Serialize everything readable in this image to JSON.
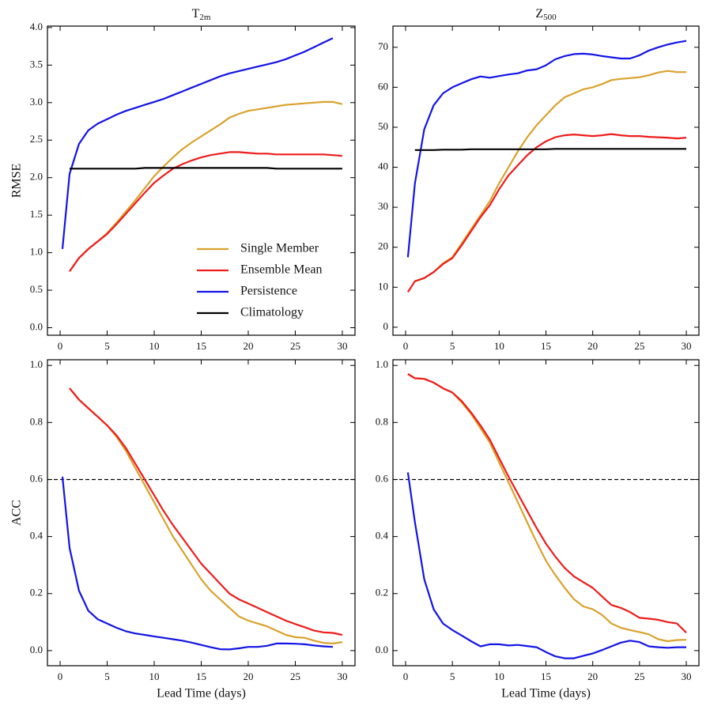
{
  "chart_data": [
    {
      "type": "line",
      "title": {
        "main": "T",
        "sub": "2m"
      },
      "ylabel": "RMSE",
      "xlim": [
        -1.35,
        31.35
      ],
      "xticks": [
        0,
        5,
        10,
        15,
        20,
        25,
        30
      ],
      "ylim": [
        -0.1,
        4.02
      ],
      "yticks": [
        {
          "value": 0,
          "label": "0.0"
        },
        0.5,
        {
          "value": 1,
          "label": "1.0"
        },
        1.5,
        {
          "value": 2,
          "label": "2.0"
        },
        2.5,
        {
          "value": 3,
          "label": "3.0"
        },
        3.5,
        {
          "value": 4,
          "label": "4.0"
        }
      ],
      "legend": "lower right",
      "series": [
        {
          "name": "Single Member",
          "color": "#d9a22c",
          "x": [
            1,
            2,
            3,
            4,
            5,
            6,
            7,
            8,
            9,
            10,
            11,
            12,
            13,
            14,
            15,
            16,
            17,
            18,
            19,
            20,
            21,
            22,
            23,
            24,
            25,
            26,
            27,
            28,
            29,
            30
          ],
          "values": [
            0.75,
            0.93,
            1.05,
            1.15,
            1.26,
            1.4,
            1.55,
            1.7,
            1.86,
            2.02,
            2.15,
            2.27,
            2.38,
            2.47,
            2.55,
            2.63,
            2.71,
            2.8,
            2.85,
            2.89,
            2.91,
            2.93,
            2.95,
            2.97,
            2.98,
            2.99,
            3.0,
            3.01,
            3.01,
            2.98
          ]
        },
        {
          "name": "Ensemble Mean",
          "color": "#ee1c1c",
          "x": [
            1,
            2,
            3,
            4,
            5,
            6,
            7,
            8,
            9,
            10,
            11,
            12,
            13,
            14,
            15,
            16,
            17,
            18,
            19,
            20,
            21,
            22,
            23,
            24,
            25,
            26,
            27,
            28,
            29,
            30
          ],
          "values": [
            0.75,
            0.93,
            1.05,
            1.15,
            1.25,
            1.38,
            1.52,
            1.66,
            1.8,
            1.93,
            2.03,
            2.12,
            2.18,
            2.23,
            2.27,
            2.3,
            2.32,
            2.34,
            2.34,
            2.33,
            2.32,
            2.32,
            2.31,
            2.31,
            2.31,
            2.31,
            2.31,
            2.31,
            2.3,
            2.29
          ]
        },
        {
          "name": "Persistence",
          "color": "#1414e6",
          "x": [
            0.25,
            1,
            2,
            3,
            4,
            5,
            6,
            7,
            8,
            9,
            10,
            11,
            12,
            13,
            14,
            15,
            16,
            17,
            18,
            19,
            20,
            21,
            22,
            23,
            24,
            25,
            26,
            27,
            28,
            29
          ],
          "values": [
            1.05,
            2.05,
            2.45,
            2.63,
            2.72,
            2.78,
            2.84,
            2.89,
            2.93,
            2.97,
            3.01,
            3.05,
            3.1,
            3.15,
            3.2,
            3.25,
            3.3,
            3.35,
            3.39,
            3.42,
            3.45,
            3.48,
            3.51,
            3.54,
            3.58,
            3.63,
            3.68,
            3.74,
            3.8,
            3.86
          ]
        },
        {
          "name": "Climatology",
          "color": "#000000",
          "x": [
            1,
            2,
            3,
            4,
            5,
            6,
            7,
            8,
            9,
            10,
            11,
            12,
            13,
            14,
            15,
            16,
            17,
            18,
            19,
            20,
            21,
            22,
            23,
            24,
            25,
            26,
            27,
            28,
            29,
            30
          ],
          "values": [
            2.12,
            2.12,
            2.12,
            2.12,
            2.12,
            2.12,
            2.12,
            2.12,
            2.13,
            2.13,
            2.13,
            2.13,
            2.13,
            2.13,
            2.13,
            2.13,
            2.13,
            2.13,
            2.13,
            2.13,
            2.13,
            2.13,
            2.12,
            2.12,
            2.12,
            2.12,
            2.12,
            2.12,
            2.12,
            2.12
          ]
        }
      ]
    },
    {
      "type": "line",
      "title": {
        "main": "Z",
        "sub": "500"
      },
      "xlim": [
        -1.35,
        31.35
      ],
      "xticks": [
        0,
        5,
        10,
        15,
        20,
        25,
        30
      ],
      "ylim": [
        -2,
        75.3
      ],
      "yticks": [
        0,
        10,
        20,
        30,
        40,
        50,
        60,
        70
      ],
      "series": [
        {
          "name": "Single Member",
          "color": "#d9a22c",
          "x": [
            1,
            2,
            3,
            4,
            5,
            6,
            7,
            8,
            9,
            10,
            11,
            12,
            13,
            14,
            15,
            16,
            17,
            18,
            19,
            20,
            21,
            22,
            23,
            24,
            25,
            26,
            27,
            28,
            29,
            30
          ],
          "values": [
            11.5,
            12.3,
            13.8,
            16,
            17.5,
            21,
            24.5,
            28,
            31.5,
            36,
            40,
            44,
            47.5,
            50.5,
            53,
            55.5,
            57.5,
            58.5,
            59.5,
            60,
            60.8,
            61.8,
            62.1,
            62.3,
            62.5,
            63,
            63.7,
            64.1,
            63.8,
            63.8
          ]
        },
        {
          "name": "Ensemble Mean",
          "color": "#ee1c1c",
          "x": [
            0.25,
            1,
            2,
            3,
            4,
            5,
            6,
            7,
            8,
            9,
            10,
            11,
            12,
            13,
            14,
            15,
            16,
            17,
            18,
            19,
            20,
            21,
            22,
            23,
            24,
            25,
            26,
            27,
            28,
            29,
            30
          ],
          "values": [
            8.8,
            11.5,
            12.3,
            13.8,
            15.8,
            17.3,
            20.5,
            24,
            27.5,
            30.5,
            34.5,
            38,
            40.5,
            43,
            45,
            46.5,
            47.5,
            48,
            48.2,
            48,
            47.8,
            48,
            48.3,
            48,
            47.8,
            47.8,
            47.6,
            47.5,
            47.4,
            47.2,
            47.4
          ]
        },
        {
          "name": "Persistence",
          "color": "#1414e6",
          "x": [
            0.25,
            1,
            2,
            3,
            4,
            5,
            6,
            7,
            8,
            9,
            10,
            11,
            12,
            13,
            14,
            15,
            16,
            17,
            18,
            19,
            20,
            21,
            22,
            23,
            24,
            25,
            26,
            27,
            28,
            29,
            30
          ],
          "values": [
            17.5,
            36,
            49.5,
            55.5,
            58.5,
            60,
            61,
            62,
            62.7,
            62.4,
            62.8,
            63.2,
            63.5,
            64.2,
            64.5,
            65.5,
            67,
            67.8,
            68.3,
            68.4,
            68.2,
            67.8,
            67.5,
            67.2,
            67.2,
            68,
            69.2,
            70,
            70.7,
            71.2,
            71.6
          ]
        },
        {
          "name": "Climatology",
          "color": "#000000",
          "x": [
            1,
            2,
            3,
            4,
            5,
            6,
            7,
            8,
            9,
            10,
            11,
            12,
            13,
            14,
            15,
            16,
            17,
            18,
            19,
            20,
            21,
            22,
            23,
            24,
            25,
            26,
            27,
            28,
            29,
            30
          ],
          "values": [
            44.3,
            44.3,
            44.3,
            44.4,
            44.4,
            44.4,
            44.5,
            44.5,
            44.5,
            44.5,
            44.5,
            44.5,
            44.5,
            44.5,
            44.5,
            44.6,
            44.6,
            44.6,
            44.6,
            44.6,
            44.6,
            44.6,
            44.6,
            44.6,
            44.6,
            44.6,
            44.6,
            44.6,
            44.6,
            44.6
          ]
        }
      ]
    },
    {
      "type": "line",
      "ylabel": "ACC",
      "xlabel": "Lead Time (days)",
      "xlim": [
        -1.35,
        31.35
      ],
      "xticks": [
        0,
        5,
        10,
        15,
        20,
        25,
        30
      ],
      "ylim": [
        -0.053,
        1.02
      ],
      "yticks": [
        {
          "value": 0,
          "label": "0.0"
        },
        0.2,
        0.4,
        0.6,
        0.8,
        {
          "value": 1,
          "label": "1.0"
        }
      ],
      "reference_line": 0.6,
      "series": [
        {
          "name": "Single Member",
          "color": "#d9a22c",
          "x": [
            1,
            2,
            3,
            4,
            5,
            6,
            7,
            8,
            9,
            10,
            11,
            12,
            13,
            14,
            15,
            16,
            17,
            18,
            19,
            20,
            21,
            22,
            23,
            24,
            25,
            26,
            27,
            28,
            29,
            30
          ],
          "values": [
            0.92,
            0.88,
            0.85,
            0.82,
            0.79,
            0.75,
            0.7,
            0.64,
            0.58,
            0.52,
            0.46,
            0.4,
            0.35,
            0.3,
            0.25,
            0.21,
            0.18,
            0.15,
            0.12,
            0.105,
            0.095,
            0.085,
            0.07,
            0.055,
            0.047,
            0.045,
            0.035,
            0.027,
            0.025,
            0.03
          ]
        },
        {
          "name": "Ensemble Mean",
          "color": "#ee1c1c",
          "x": [
            1,
            2,
            3,
            4,
            5,
            6,
            7,
            8,
            9,
            10,
            11,
            12,
            13,
            14,
            15,
            16,
            17,
            18,
            19,
            20,
            21,
            22,
            23,
            24,
            25,
            26,
            27,
            28,
            29,
            30
          ],
          "values": [
            0.92,
            0.88,
            0.85,
            0.82,
            0.79,
            0.755,
            0.71,
            0.655,
            0.6,
            0.545,
            0.49,
            0.44,
            0.395,
            0.35,
            0.305,
            0.27,
            0.235,
            0.2,
            0.18,
            0.165,
            0.15,
            0.135,
            0.12,
            0.105,
            0.093,
            0.082,
            0.07,
            0.064,
            0.062,
            0.055
          ]
        },
        {
          "name": "Persistence",
          "color": "#1414e6",
          "x": [
            0.25,
            1,
            2,
            3,
            4,
            5,
            6,
            7,
            8,
            9,
            10,
            11,
            12,
            13,
            14,
            15,
            16,
            17,
            18,
            19,
            20,
            21,
            22,
            23,
            24,
            25,
            26,
            27,
            28,
            29
          ],
          "values": [
            0.61,
            0.36,
            0.21,
            0.14,
            0.11,
            0.095,
            0.08,
            0.068,
            0.06,
            0.055,
            0.05,
            0.045,
            0.04,
            0.035,
            0.028,
            0.02,
            0.012,
            0.005,
            0.004,
            0.008,
            0.013,
            0.013,
            0.017,
            0.025,
            0.025,
            0.024,
            0.022,
            0.018,
            0.015,
            0.013
          ]
        }
      ]
    },
    {
      "type": "line",
      "xlabel": "Lead Time (days)",
      "xlim": [
        -1.35,
        31.35
      ],
      "xticks": [
        0,
        5,
        10,
        15,
        20,
        25,
        30
      ],
      "ylim": [
        -0.053,
        1.02
      ],
      "yticks": [
        {
          "value": 0,
          "label": "0.0"
        },
        0.2,
        0.4,
        0.6,
        0.8,
        {
          "value": 1,
          "label": "1.0"
        }
      ],
      "reference_line": 0.6,
      "series": [
        {
          "name": "Single Member",
          "color": "#d9a22c",
          "x": [
            0.25,
            1,
            2,
            3,
            4,
            5,
            6,
            7,
            8,
            9,
            10,
            11,
            12,
            13,
            14,
            15,
            16,
            17,
            18,
            19,
            20,
            21,
            22,
            23,
            24,
            25,
            26,
            27,
            28,
            29,
            30
          ],
          "values": [
            0.97,
            0.955,
            0.953,
            0.94,
            0.92,
            0.905,
            0.87,
            0.83,
            0.78,
            0.73,
            0.66,
            0.59,
            0.52,
            0.45,
            0.38,
            0.315,
            0.265,
            0.22,
            0.18,
            0.155,
            0.145,
            0.125,
            0.095,
            0.08,
            0.072,
            0.065,
            0.057,
            0.04,
            0.033,
            0.037,
            0.038
          ]
        },
        {
          "name": "Ensemble Mean",
          "color": "#ee1c1c",
          "x": [
            0.25,
            1,
            2,
            3,
            4,
            5,
            6,
            7,
            8,
            9,
            10,
            11,
            12,
            13,
            14,
            15,
            16,
            17,
            18,
            19,
            20,
            21,
            22,
            23,
            24,
            25,
            26,
            27,
            28,
            29,
            30
          ],
          "values": [
            0.97,
            0.955,
            0.953,
            0.94,
            0.92,
            0.905,
            0.875,
            0.835,
            0.79,
            0.74,
            0.675,
            0.61,
            0.55,
            0.49,
            0.43,
            0.375,
            0.33,
            0.29,
            0.26,
            0.24,
            0.22,
            0.19,
            0.16,
            0.15,
            0.135,
            0.115,
            0.112,
            0.108,
            0.1,
            0.095,
            0.063
          ]
        },
        {
          "name": "Persistence",
          "color": "#1414e6",
          "x": [
            0.25,
            1,
            2,
            3,
            4,
            5,
            6,
            7,
            8,
            9,
            10,
            11,
            12,
            13,
            14,
            15,
            16,
            17,
            18,
            19,
            20,
            21,
            22,
            23,
            24,
            25,
            26,
            27,
            28,
            29,
            30
          ],
          "values": [
            0.625,
            0.45,
            0.25,
            0.145,
            0.095,
            0.072,
            0.053,
            0.033,
            0.015,
            0.022,
            0.022,
            0.018,
            0.02,
            0.016,
            0.012,
            -0.005,
            -0.02,
            -0.027,
            -0.027,
            -0.018,
            -0.01,
            0.002,
            0.015,
            0.028,
            0.035,
            0.03,
            0.015,
            0.012,
            0.01,
            0.012,
            0.012
          ]
        }
      ]
    }
  ]
}
